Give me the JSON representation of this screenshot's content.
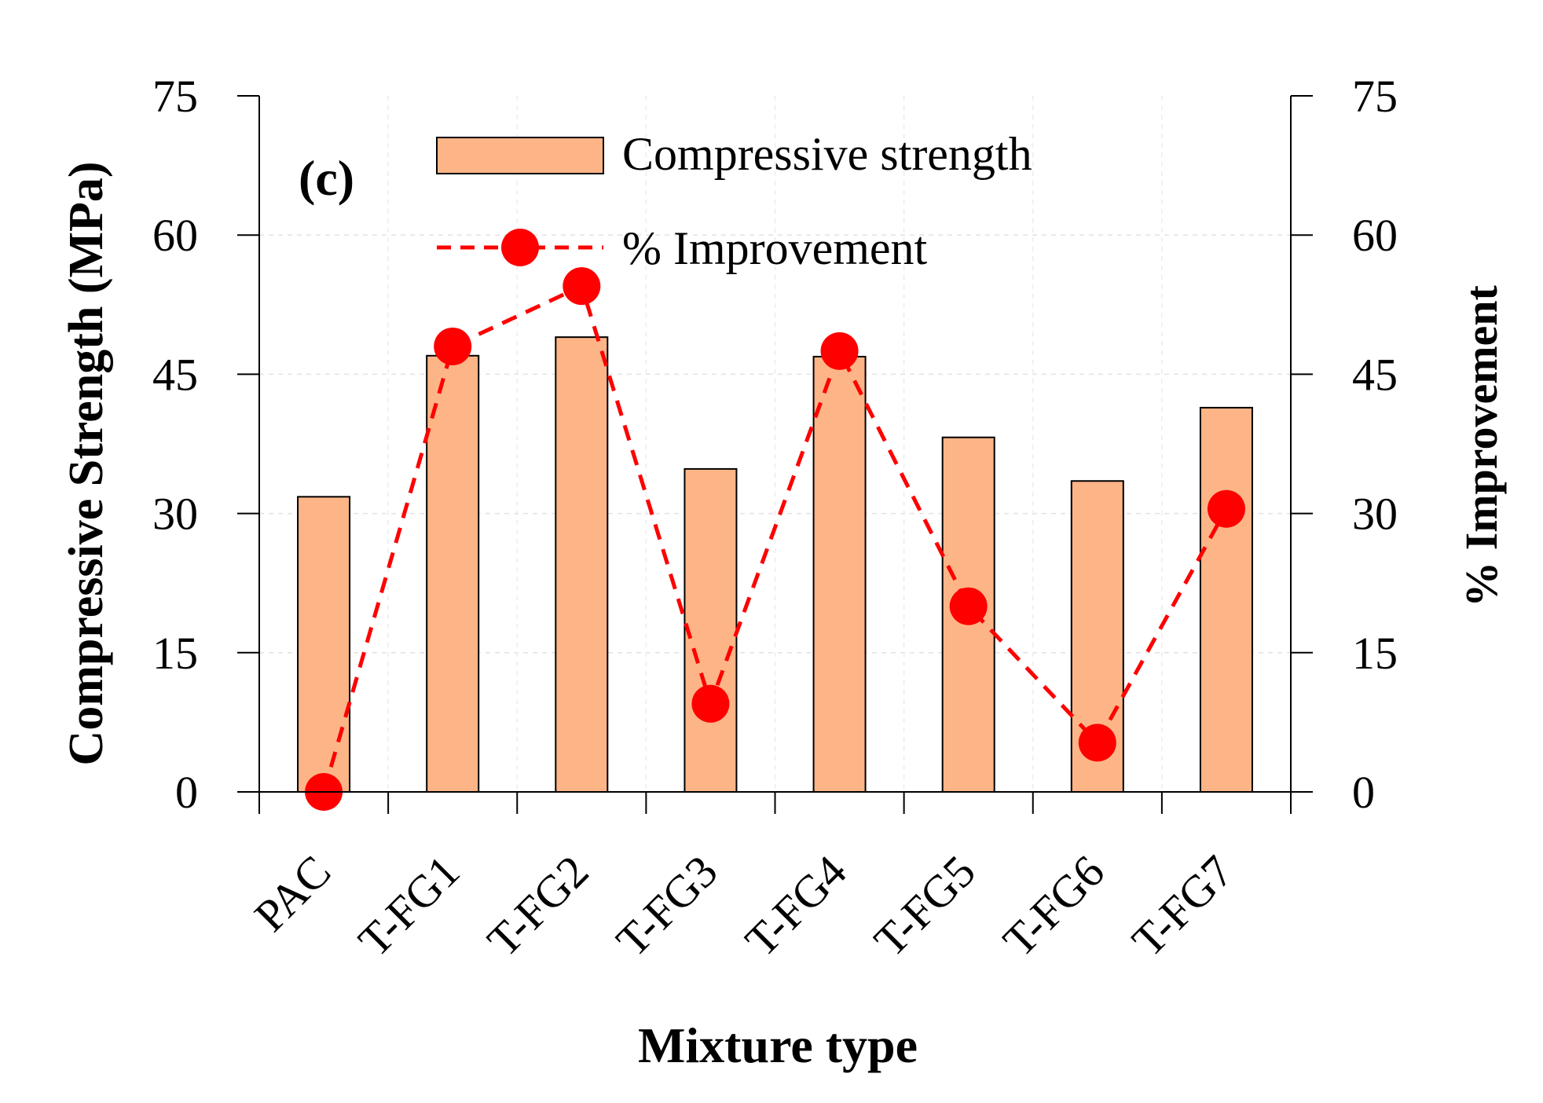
{
  "chart_data": {
    "type": "bar",
    "panel_label": "(c)",
    "xlabel": "Mixture type",
    "ylabel": "Compressive Strength (MPa)",
    "y2label": "% Improvement",
    "categories": [
      "PAC",
      "T-FG1",
      "T-FG2",
      "T-FG3",
      "T-FG4",
      "T-FG5",
      "T-FG6",
      "T-FG7"
    ],
    "ylim": [
      0,
      75
    ],
    "y2lim": [
      0,
      75
    ],
    "yticks": [
      "0",
      "15",
      "30",
      "45",
      "60",
      "75"
    ],
    "y2ticks": [
      "0",
      "15",
      "30",
      "45",
      "60",
      "75"
    ],
    "grid": true,
    "legend_position": "top-center",
    "series": [
      {
        "name": "Compressive strength",
        "kind": "bar",
        "axis": "left",
        "color": "#FDB587",
        "values": [
          31.8,
          47.0,
          49.0,
          34.8,
          46.9,
          38.2,
          33.5,
          41.4
        ]
      },
      {
        "name": "% Improvement",
        "kind": "line",
        "axis": "right",
        "color": "#FF0000",
        "style": "dashed",
        "values": [
          0,
          48.0,
          54.5,
          9.5,
          47.5,
          20.0,
          5.3,
          30.5
        ]
      }
    ]
  }
}
